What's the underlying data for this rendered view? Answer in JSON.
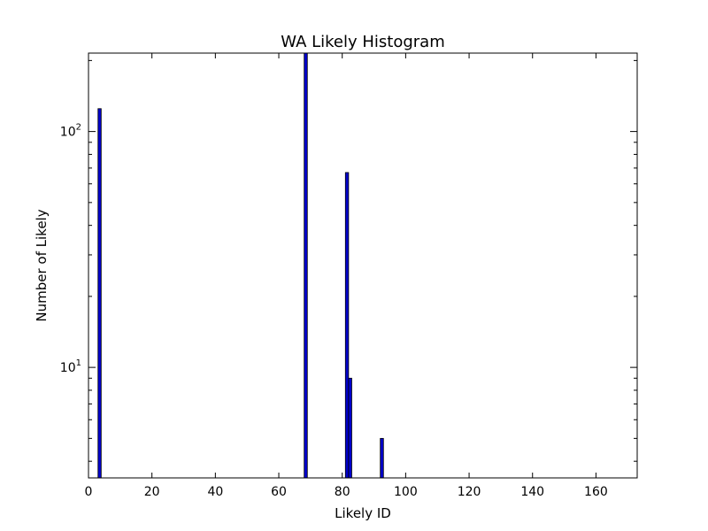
{
  "chart_data": {
    "type": "bar",
    "title": "WA Likely Histogram",
    "xlabel": "Likely ID",
    "ylabel": "Number of Likely",
    "xlim": [
      0,
      173
    ],
    "ylim": [
      3.4,
      215
    ],
    "yscale": "log",
    "grid": false,
    "colors": {
      "bar": "#0000cc",
      "edge": "#000000"
    },
    "x_ticks": [
      {
        "value": 0,
        "label": "0"
      },
      {
        "value": 20,
        "label": "20"
      },
      {
        "value": 40,
        "label": "40"
      },
      {
        "value": 60,
        "label": "60"
      },
      {
        "value": 80,
        "label": "80"
      },
      {
        "value": 100,
        "label": "100"
      },
      {
        "value": 120,
        "label": "120"
      },
      {
        "value": 140,
        "label": "140"
      },
      {
        "value": 160,
        "label": "160"
      }
    ],
    "y_major_ticks": [
      {
        "value": 10,
        "base": "10",
        "exp": "1"
      },
      {
        "value": 100,
        "base": "10",
        "exp": "2"
      }
    ],
    "bars": [
      {
        "x": 3,
        "width": 1,
        "value": 125
      },
      {
        "x": 68,
        "width": 1,
        "value": 215
      },
      {
        "x": 81,
        "width": 1,
        "value": 67
      },
      {
        "x": 82,
        "width": 1,
        "value": 9
      },
      {
        "x": 92,
        "width": 1,
        "value": 5
      }
    ]
  }
}
